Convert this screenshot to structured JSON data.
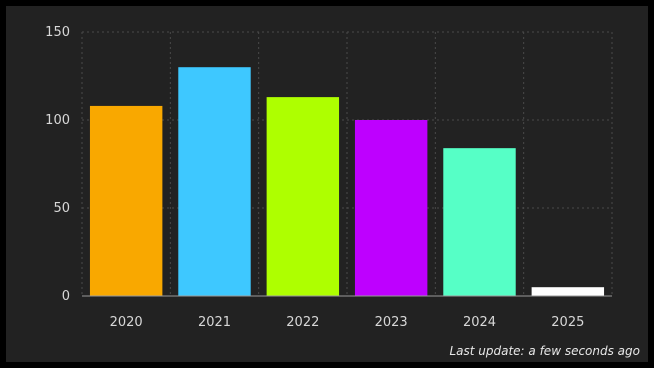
{
  "chart_data": {
    "type": "bar",
    "categories": [
      "2020",
      "2021",
      "2022",
      "2023",
      "2024",
      "2025"
    ],
    "values": [
      108,
      130,
      113,
      100,
      84,
      5
    ],
    "colors": [
      "#F9A800",
      "#3EC8FF",
      "#AEFF00",
      "#BE00FF",
      "#56FFC6",
      "#FFFFFF"
    ],
    "yticks": [
      0,
      50,
      100,
      150
    ],
    "ylim": [
      0,
      150
    ],
    "grid": true,
    "title": "",
    "xlabel": "",
    "ylabel": ""
  },
  "footer": {
    "last_update": "Last update: a few seconds ago"
  },
  "theme": {
    "background": "#222222",
    "grid_color": "#4a4a4a",
    "axis_color": "#9a9a9a"
  }
}
